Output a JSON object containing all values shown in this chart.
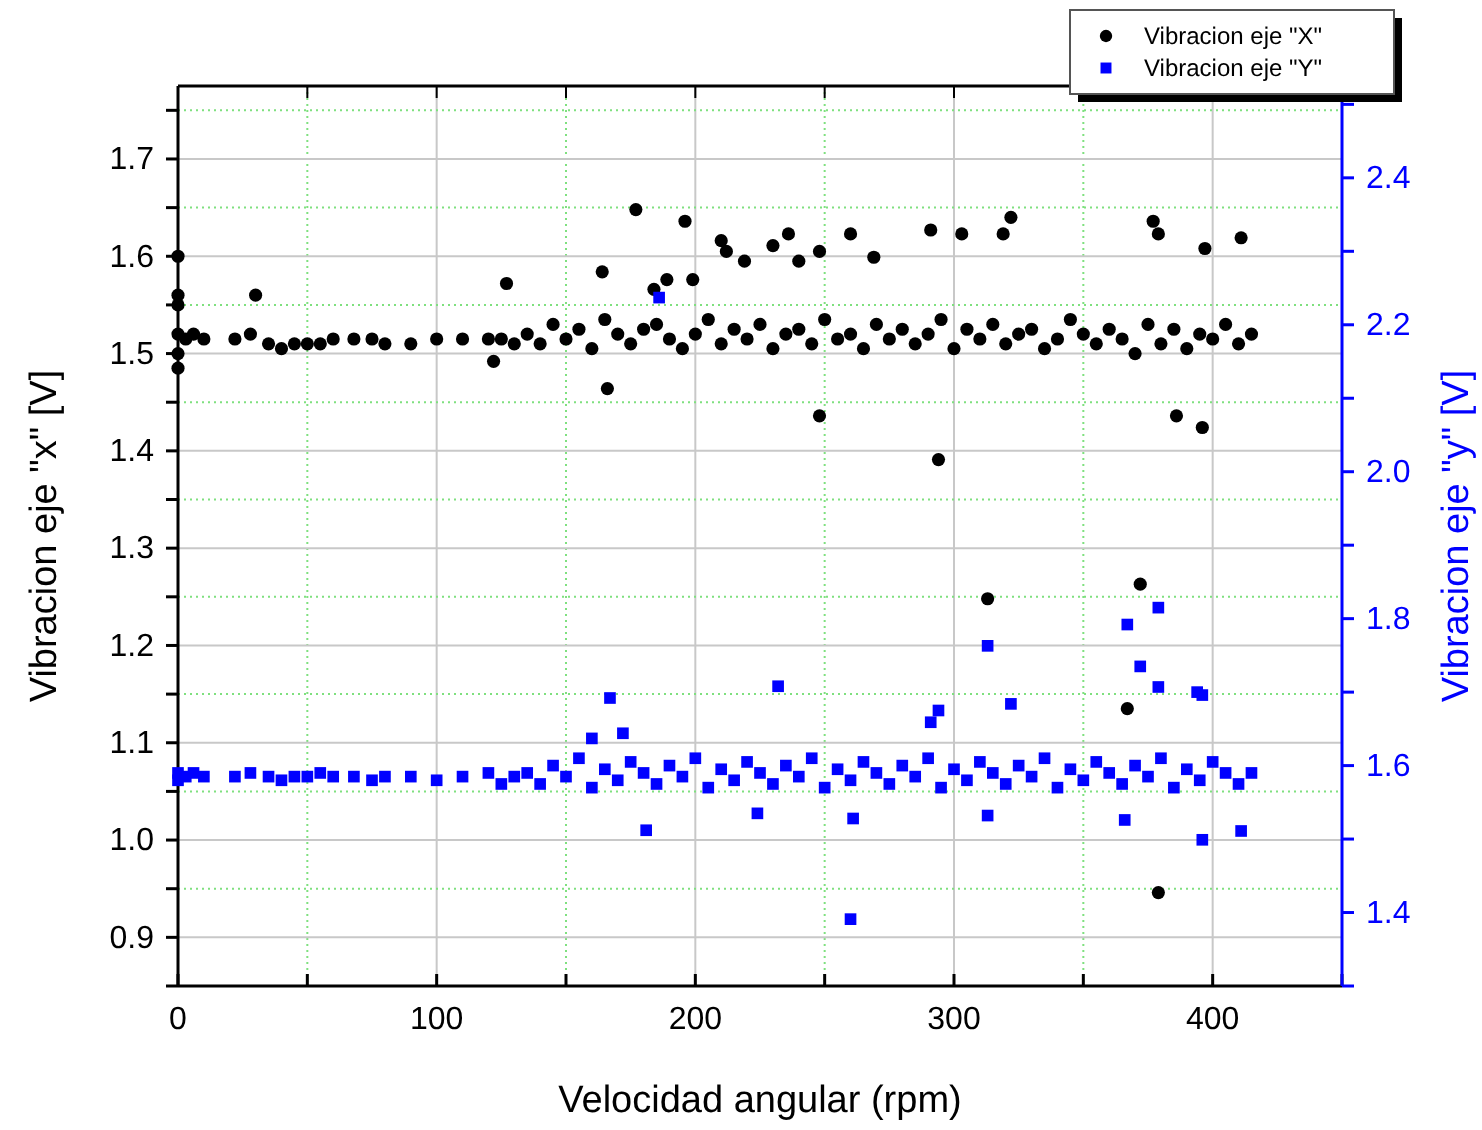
{
  "chart_data": {
    "type": "scatter",
    "xlabel": "Velocidad angular (rpm)",
    "ylabel": "Vibracion eje \"x\" [V]",
    "y2label": "Vibracion eje \"y\" [V]",
    "xlim": [
      0,
      450
    ],
    "xticks": [
      0,
      {
        "value": 50,
        "label": null
      },
      100,
      {
        "value": 150,
        "label": null
      },
      200,
      {
        "value": 250,
        "label": null
      },
      300,
      {
        "value": 350,
        "label": null
      },
      400,
      {
        "value": 450,
        "label": null
      }
    ],
    "ylim": [
      0.85,
      1.775
    ],
    "yticks": [
      {
        "value": 0.85,
        "label": null
      },
      0.9,
      {
        "value": 0.95,
        "label": null
      },
      {
        "value": 1.0,
        "label": "1.0"
      },
      {
        "value": 1.05,
        "label": null
      },
      1.1,
      {
        "value": 1.15,
        "label": null
      },
      1.2,
      {
        "value": 1.25,
        "label": null
      },
      1.3,
      {
        "value": 1.35,
        "label": null
      },
      1.4,
      {
        "value": 1.45,
        "label": null
      },
      1.5,
      {
        "value": 1.55,
        "label": null
      },
      1.6,
      {
        "value": 1.65,
        "label": null
      },
      1.7,
      {
        "value": 1.75,
        "label": null
      }
    ],
    "y2lim": [
      1.3,
      2.525
    ],
    "y2ticks": [
      {
        "value": 1.3,
        "label": null
      },
      1.4,
      {
        "value": 1.5,
        "label": null
      },
      1.6,
      {
        "value": 1.7,
        "label": null
      },
      1.8,
      {
        "value": 1.9,
        "label": null
      },
      {
        "value": 2.0,
        "label": "2.0"
      },
      {
        "value": 2.1,
        "label": null
      },
      2.2,
      {
        "value": 2.3,
        "label": null
      },
      2.4,
      {
        "value": 2.5,
        "label": null
      }
    ],
    "grid": true,
    "legend": "top right",
    "series": [
      {
        "name": "Vibracion eje \"X\"",
        "color": "#000000",
        "marker": "circle",
        "x": [
          0,
          0,
          0,
          0,
          0,
          0,
          3,
          6,
          10,
          22,
          28,
          35,
          40,
          45,
          50,
          55,
          60,
          68,
          75,
          80,
          90,
          100,
          110,
          120,
          125,
          130,
          135,
          140,
          145,
          150,
          155,
          160,
          165,
          170,
          175,
          180,
          185,
          190,
          195,
          200,
          205,
          210,
          215,
          220,
          225,
          230,
          235,
          240,
          245,
          250,
          255,
          260,
          265,
          270,
          275,
          280,
          285,
          290,
          295,
          300,
          305,
          310,
          315,
          320,
          325,
          330,
          335,
          340,
          345,
          350,
          355,
          360,
          365,
          370,
          375,
          380,
          385,
          390,
          395,
          400,
          405,
          410,
          415,
          177,
          196,
          210,
          236,
          230,
          164,
          127,
          30,
          166,
          122,
          248,
          248,
          212,
          219,
          240,
          184,
          189,
          199,
          260,
          269,
          291,
          303,
          319,
          322,
          377,
          379,
          397,
          411,
          294,
          386,
          396,
          313,
          372,
          367,
          379
        ],
        "values": [
          1.6,
          1.56,
          1.55,
          1.52,
          1.5,
          1.485,
          1.515,
          1.52,
          1.515,
          1.515,
          1.52,
          1.51,
          1.505,
          1.51,
          1.51,
          1.51,
          1.515,
          1.515,
          1.515,
          1.51,
          1.51,
          1.515,
          1.515,
          1.515,
          1.515,
          1.51,
          1.52,
          1.51,
          1.53,
          1.515,
          1.525,
          1.505,
          1.535,
          1.52,
          1.51,
          1.525,
          1.53,
          1.515,
          1.505,
          1.52,
          1.535,
          1.51,
          1.525,
          1.515,
          1.53,
          1.505,
          1.52,
          1.525,
          1.51,
          1.535,
          1.515,
          1.52,
          1.505,
          1.53,
          1.515,
          1.525,
          1.51,
          1.52,
          1.535,
          1.505,
          1.525,
          1.515,
          1.53,
          1.51,
          1.52,
          1.525,
          1.505,
          1.515,
          1.535,
          1.52,
          1.51,
          1.525,
          1.515,
          1.5,
          1.53,
          1.51,
          1.525,
          1.505,
          1.52,
          1.515,
          1.53,
          1.51,
          1.52,
          1.648,
          1.636,
          1.616,
          1.623,
          1.611,
          1.584,
          1.572,
          1.56,
          1.464,
          1.492,
          1.436,
          1.605,
          1.605,
          1.595,
          1.595,
          1.566,
          1.576,
          1.576,
          1.623,
          1.599,
          1.627,
          1.623,
          1.623,
          1.64,
          1.636,
          1.623,
          1.608,
          1.619,
          1.391,
          1.436,
          1.424,
          1.248,
          1.263,
          1.135,
          0.946
        ]
      },
      {
        "name": "Vibracion eje \"Y\"",
        "color": "#0000ff",
        "marker": "square",
        "axis": "y2",
        "x": [
          0,
          0,
          3,
          6,
          10,
          22,
          28,
          35,
          40,
          45,
          50,
          55,
          60,
          68,
          75,
          80,
          90,
          100,
          110,
          120,
          125,
          130,
          135,
          140,
          145,
          150,
          155,
          160,
          165,
          170,
          175,
          180,
          185,
          190,
          195,
          200,
          205,
          210,
          215,
          220,
          225,
          230,
          235,
          240,
          245,
          250,
          255,
          260,
          265,
          270,
          275,
          280,
          285,
          290,
          295,
          300,
          305,
          310,
          315,
          320,
          325,
          330,
          335,
          340,
          345,
          350,
          355,
          360,
          365,
          370,
          375,
          380,
          385,
          390,
          395,
          400,
          405,
          410,
          415,
          186,
          232,
          167,
          172,
          160,
          181,
          224,
          260,
          313,
          367,
          379,
          372,
          379,
          322,
          394,
          396,
          396,
          411,
          313,
          261,
          291,
          294,
          366
        ],
        "values": [
          1.59,
          1.58,
          1.585,
          1.59,
          1.585,
          1.585,
          1.59,
          1.585,
          1.58,
          1.585,
          1.585,
          1.59,
          1.585,
          1.585,
          1.58,
          1.585,
          1.585,
          1.58,
          1.585,
          1.59,
          1.575,
          1.585,
          1.59,
          1.575,
          1.6,
          1.585,
          1.61,
          1.57,
          1.595,
          1.58,
          1.605,
          1.59,
          1.575,
          1.6,
          1.585,
          1.61,
          1.57,
          1.595,
          1.58,
          1.605,
          1.59,
          1.575,
          1.6,
          1.585,
          1.61,
          1.57,
          1.595,
          1.58,
          1.605,
          1.59,
          1.575,
          1.6,
          1.585,
          1.61,
          1.57,
          1.595,
          1.58,
          1.605,
          1.59,
          1.575,
          1.6,
          1.585,
          1.61,
          1.57,
          1.595,
          1.58,
          1.605,
          1.59,
          1.575,
          1.6,
          1.585,
          1.61,
          1.57,
          1.595,
          1.58,
          1.605,
          1.59,
          1.575,
          1.59,
          2.237,
          1.708,
          1.692,
          1.644,
          1.637,
          1.512,
          1.535,
          1.391,
          1.763,
          1.792,
          1.815,
          1.735,
          1.707,
          1.684,
          1.7,
          1.696,
          1.499,
          1.511,
          1.532,
          1.528,
          1.659,
          1.675,
          1.526
        ]
      }
    ]
  }
}
